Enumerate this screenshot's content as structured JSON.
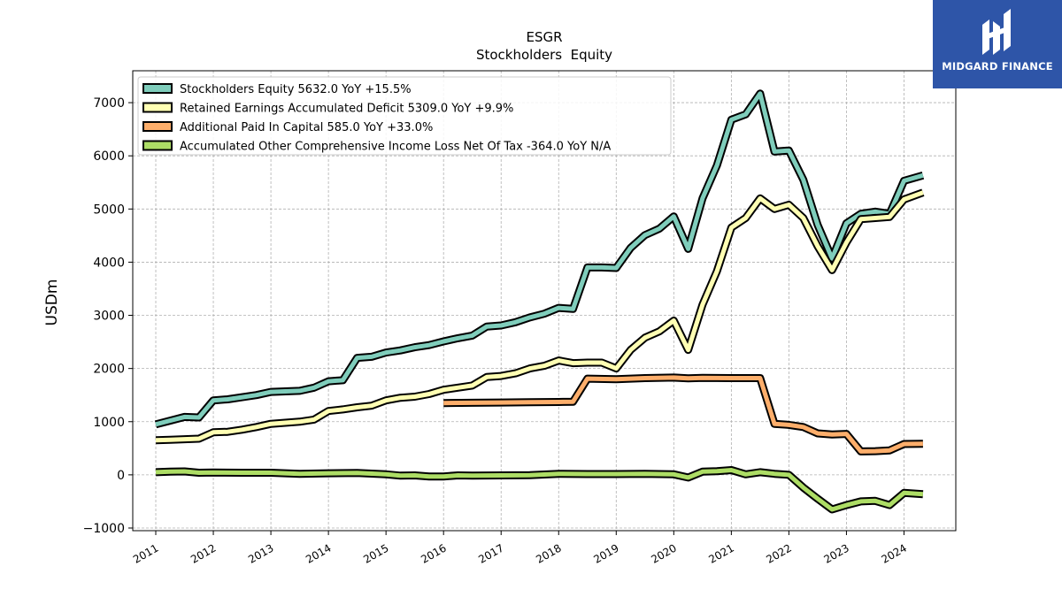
{
  "chart_data": {
    "type": "line",
    "title": "ESGR",
    "subtitle": "Stockholders  Equity",
    "ylabel": "USDm",
    "xlabel": "",
    "xlim": [
      2010.6,
      2024.9
    ],
    "ylim": [
      -1050,
      7600
    ],
    "yticks": [
      -1000,
      0,
      1000,
      2000,
      3000,
      4000,
      5000,
      6000,
      7000
    ],
    "ytick_labels": [
      "−1000",
      "0",
      "1000",
      "2000",
      "3000",
      "4000",
      "5000",
      "6000",
      "7000"
    ],
    "xticks": [
      2011,
      2012,
      2013,
      2014,
      2015,
      2016,
      2017,
      2018,
      2019,
      2020,
      2021,
      2022,
      2023,
      2024
    ],
    "xtick_labels": [
      "2011",
      "2012",
      "2013",
      "2014",
      "2015",
      "2016",
      "2017",
      "2018",
      "2019",
      "2020",
      "2021",
      "2022",
      "2023",
      "2024"
    ],
    "grid": true,
    "legend_position": "top-left",
    "series": [
      {
        "name": "Stockholders Equity",
        "legend": "Stockholders Equity  5632.0 YoY +15.5%",
        "color": "#7fcdbb",
        "points": [
          [
            2011.0,
            950
          ],
          [
            2011.25,
            1020
          ],
          [
            2011.5,
            1090
          ],
          [
            2011.75,
            1080
          ],
          [
            2012.0,
            1400
          ],
          [
            2012.25,
            1420
          ],
          [
            2012.5,
            1460
          ],
          [
            2012.75,
            1500
          ],
          [
            2013.0,
            1560
          ],
          [
            2013.25,
            1570
          ],
          [
            2013.5,
            1580
          ],
          [
            2013.75,
            1640
          ],
          [
            2014.0,
            1760
          ],
          [
            2014.25,
            1780
          ],
          [
            2014.5,
            2200
          ],
          [
            2014.75,
            2220
          ],
          [
            2015.0,
            2300
          ],
          [
            2015.25,
            2340
          ],
          [
            2015.5,
            2400
          ],
          [
            2015.75,
            2440
          ],
          [
            2016.0,
            2510
          ],
          [
            2016.25,
            2570
          ],
          [
            2016.5,
            2620
          ],
          [
            2016.75,
            2790
          ],
          [
            2017.0,
            2810
          ],
          [
            2017.25,
            2870
          ],
          [
            2017.5,
            2960
          ],
          [
            2017.75,
            3030
          ],
          [
            2018.0,
            3140
          ],
          [
            2018.25,
            3120
          ],
          [
            2018.5,
            3900
          ],
          [
            2018.75,
            3900
          ],
          [
            2019.0,
            3890
          ],
          [
            2019.25,
            4270
          ],
          [
            2019.5,
            4510
          ],
          [
            2019.75,
            4630
          ],
          [
            2020.0,
            4860
          ],
          [
            2020.25,
            4250
          ],
          [
            2020.5,
            5200
          ],
          [
            2020.75,
            5820
          ],
          [
            2021.0,
            6680
          ],
          [
            2021.25,
            6780
          ],
          [
            2021.5,
            7170
          ],
          [
            2021.75,
            6080
          ],
          [
            2022.0,
            6100
          ],
          [
            2022.25,
            5550
          ],
          [
            2022.5,
            4700
          ],
          [
            2022.75,
            4070
          ],
          [
            2023.0,
            4730
          ],
          [
            2023.25,
            4910
          ],
          [
            2023.5,
            4950
          ],
          [
            2023.75,
            4910
          ],
          [
            2024.0,
            5530
          ],
          [
            2024.33,
            5632
          ]
        ]
      },
      {
        "name": "Retained Earnings Accumulated Deficit",
        "legend": "Retained Earnings Accumulated Deficit  5309.0 YoY +9.9%",
        "color": "#ffffb3",
        "points": [
          [
            2011.0,
            650
          ],
          [
            2011.25,
            660
          ],
          [
            2011.5,
            670
          ],
          [
            2011.75,
            680
          ],
          [
            2012.0,
            800
          ],
          [
            2012.25,
            810
          ],
          [
            2012.5,
            850
          ],
          [
            2012.75,
            900
          ],
          [
            2013.0,
            960
          ],
          [
            2013.25,
            980
          ],
          [
            2013.5,
            1000
          ],
          [
            2013.75,
            1040
          ],
          [
            2014.0,
            1200
          ],
          [
            2014.25,
            1230
          ],
          [
            2014.5,
            1270
          ],
          [
            2014.75,
            1300
          ],
          [
            2015.0,
            1400
          ],
          [
            2015.25,
            1450
          ],
          [
            2015.5,
            1470
          ],
          [
            2015.75,
            1520
          ],
          [
            2016.0,
            1600
          ],
          [
            2016.25,
            1640
          ],
          [
            2016.5,
            1680
          ],
          [
            2016.75,
            1840
          ],
          [
            2017.0,
            1860
          ],
          [
            2017.25,
            1910
          ],
          [
            2017.5,
            2000
          ],
          [
            2017.75,
            2050
          ],
          [
            2018.0,
            2150
          ],
          [
            2018.25,
            2100
          ],
          [
            2018.5,
            2110
          ],
          [
            2018.75,
            2110
          ],
          [
            2019.0,
            2000
          ],
          [
            2019.25,
            2350
          ],
          [
            2019.5,
            2580
          ],
          [
            2019.75,
            2700
          ],
          [
            2020.0,
            2900
          ],
          [
            2020.25,
            2350
          ],
          [
            2020.5,
            3200
          ],
          [
            2020.75,
            3830
          ],
          [
            2021.0,
            4650
          ],
          [
            2021.25,
            4830
          ],
          [
            2021.5,
            5200
          ],
          [
            2021.75,
            5000
          ],
          [
            2022.0,
            5080
          ],
          [
            2022.25,
            4830
          ],
          [
            2022.5,
            4300
          ],
          [
            2022.75,
            3850
          ],
          [
            2023.0,
            4370
          ],
          [
            2023.25,
            4810
          ],
          [
            2023.5,
            4830
          ],
          [
            2023.75,
            4850
          ],
          [
            2024.0,
            5180
          ],
          [
            2024.33,
            5309
          ]
        ]
      },
      {
        "name": "Additional Paid In Capital",
        "legend": "Additional Paid In Capital  585.0 YoY +33.0%",
        "color": "#fdae6b",
        "points": [
          [
            2016.0,
            1350
          ],
          [
            2016.5,
            1355
          ],
          [
            2017.0,
            1360
          ],
          [
            2017.5,
            1365
          ],
          [
            2018.0,
            1370
          ],
          [
            2018.25,
            1375
          ],
          [
            2018.5,
            1810
          ],
          [
            2019.0,
            1800
          ],
          [
            2019.5,
            1820
          ],
          [
            2020.0,
            1830
          ],
          [
            2020.25,
            1815
          ],
          [
            2020.5,
            1825
          ],
          [
            2021.0,
            1820
          ],
          [
            2021.5,
            1820
          ],
          [
            2021.75,
            960
          ],
          [
            2022.0,
            940
          ],
          [
            2022.25,
            900
          ],
          [
            2022.5,
            780
          ],
          [
            2022.75,
            760
          ],
          [
            2023.0,
            770
          ],
          [
            2023.25,
            440
          ],
          [
            2023.5,
            445
          ],
          [
            2023.75,
            460
          ],
          [
            2024.0,
            580
          ],
          [
            2024.33,
            585
          ]
        ]
      },
      {
        "name": "Accumulated Other Comprehensive Income Loss Net Of Tax",
        "legend": "Accumulated Other Comprehensive Income Loss Net Of Tax  -364.0 YoY N/A",
        "color": "#addd65",
        "points": [
          [
            2011.0,
            50
          ],
          [
            2011.25,
            60
          ],
          [
            2011.5,
            65
          ],
          [
            2011.75,
            40
          ],
          [
            2012.0,
            45
          ],
          [
            2012.5,
            40
          ],
          [
            2013.0,
            40
          ],
          [
            2013.5,
            20
          ],
          [
            2014.0,
            30
          ],
          [
            2014.5,
            35
          ],
          [
            2015.0,
            10
          ],
          [
            2015.25,
            -15
          ],
          [
            2015.5,
            -10
          ],
          [
            2015.75,
            -30
          ],
          [
            2016.0,
            -30
          ],
          [
            2016.25,
            -10
          ],
          [
            2016.5,
            -15
          ],
          [
            2017.0,
            -10
          ],
          [
            2017.5,
            -5
          ],
          [
            2018.0,
            20
          ],
          [
            2018.5,
            15
          ],
          [
            2019.0,
            15
          ],
          [
            2019.5,
            20
          ],
          [
            2020.0,
            10
          ],
          [
            2020.25,
            -50
          ],
          [
            2020.5,
            60
          ],
          [
            2020.75,
            70
          ],
          [
            2021.0,
            90
          ],
          [
            2021.25,
            10
          ],
          [
            2021.5,
            50
          ],
          [
            2021.75,
            20
          ],
          [
            2022.0,
            0
          ],
          [
            2022.25,
            -240
          ],
          [
            2022.5,
            -450
          ],
          [
            2022.75,
            -650
          ],
          [
            2023.0,
            -570
          ],
          [
            2023.25,
            -500
          ],
          [
            2023.5,
            -490
          ],
          [
            2023.75,
            -570
          ],
          [
            2024.0,
            -340
          ],
          [
            2024.33,
            -364
          ]
        ]
      }
    ]
  },
  "logo": {
    "text": "MIDGARD FINANCE",
    "background": "#2e55a8"
  }
}
